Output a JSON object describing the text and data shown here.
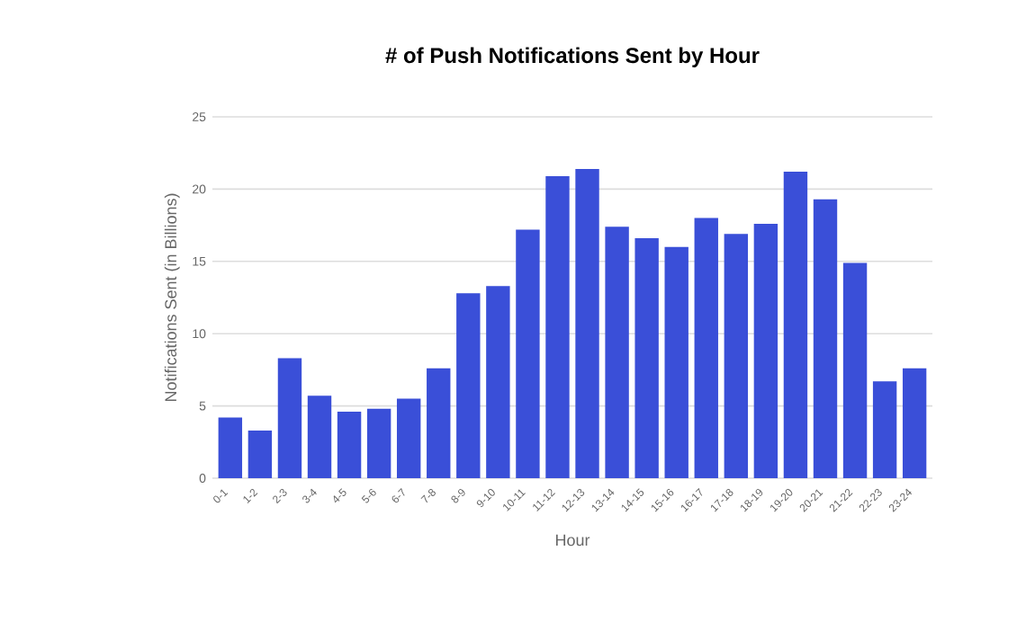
{
  "chart_data": {
    "type": "bar",
    "title": "# of Push Notifications Sent by Hour",
    "xlabel": "Hour",
    "ylabel": "Notifications Sent (in Billions)",
    "categories": [
      "0-1",
      "1-2",
      "2-3",
      "3-4",
      "4-5",
      "5-6",
      "6-7",
      "7-8",
      "8-9",
      "9-10",
      "10-11",
      "11-12",
      "12-13",
      "13-14",
      "14-15",
      "15-16",
      "16-17",
      "17-18",
      "18-19",
      "19-20",
      "20-21",
      "21-22",
      "22-23",
      "23-24"
    ],
    "values": [
      4.2,
      3.3,
      8.3,
      5.7,
      4.6,
      4.8,
      5.5,
      7.6,
      12.8,
      13.3,
      17.2,
      20.9,
      21.4,
      17.4,
      16.6,
      16.0,
      18.0,
      16.9,
      17.6,
      21.2,
      19.3,
      14.9,
      6.7,
      7.6
    ],
    "color": "#3a4fd8",
    "ylim": [
      0,
      25
    ],
    "yticks": [
      0,
      5,
      10,
      15,
      20,
      25
    ],
    "grid": "y"
  }
}
